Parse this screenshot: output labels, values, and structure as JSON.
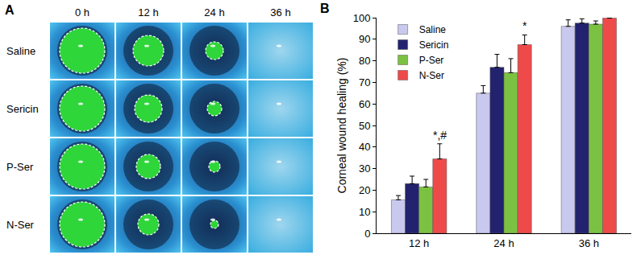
{
  "panel_a": {
    "label": "A",
    "columns": [
      "0 h",
      "12 h",
      "24 h",
      "36 h"
    ],
    "rows": [
      "Saline",
      "Sericin",
      "P-Ser",
      "N-Ser"
    ]
  },
  "chart_data": {
    "type": "bar",
    "title": "B",
    "y_label": "Corneal wound healing (%)",
    "categories": [
      "12 h",
      "24 h",
      "36 h"
    ],
    "series": [
      {
        "name": "Saline",
        "color": "#c9c9ef",
        "values": [
          15.5,
          65,
          96
        ],
        "errors": [
          2,
          3.5,
          3
        ]
      },
      {
        "name": "Sericin",
        "color": "#22226e",
        "values": [
          23,
          77,
          97.5
        ],
        "errors": [
          3.5,
          6,
          2
        ]
      },
      {
        "name": "P-Ser",
        "color": "#7cc242",
        "values": [
          21.5,
          74.5,
          97
        ],
        "errors": [
          3.5,
          6.5,
          1.5
        ]
      },
      {
        "name": "N-Ser",
        "color": "#ef4a4a",
        "values": [
          34.5,
          87.5,
          99.8
        ],
        "errors": [
          7,
          4.5,
          0.3
        ]
      }
    ],
    "annotations": [
      {
        "category": "12 h",
        "series": "N-Ser",
        "text": "*,#"
      },
      {
        "category": "24 h",
        "series": "N-Ser",
        "text": "*"
      }
    ],
    "ylim": [
      0,
      100
    ],
    "yticks": [
      0,
      10,
      20,
      30,
      40,
      50,
      60,
      70,
      80,
      90,
      100
    ],
    "grid": false,
    "legend": "upper left"
  }
}
